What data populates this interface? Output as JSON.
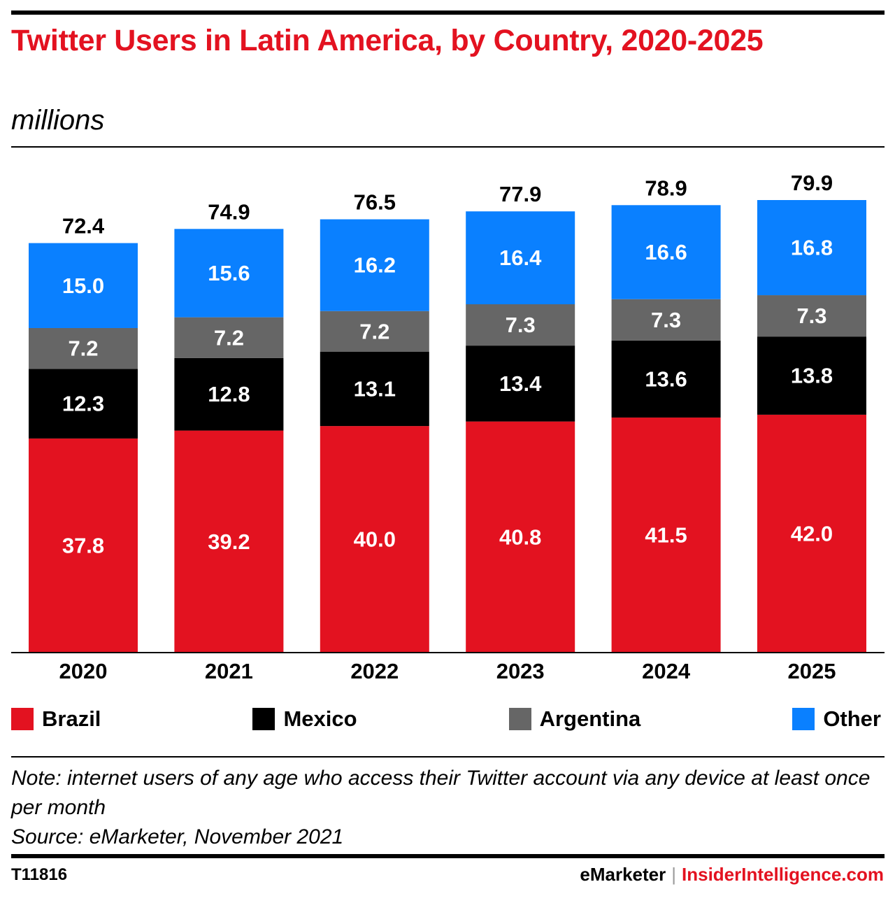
{
  "header": {
    "title": "Twitter Users in Latin America, by Country, 2020-2025",
    "subtitle": "millions"
  },
  "colors": {
    "title": "#e31220",
    "Brazil": "#e31220",
    "Mexico": "#000000",
    "Argentina": "#666666",
    "Other": "#0a80ff"
  },
  "chart_data": {
    "type": "bar",
    "stacked": true,
    "title": "Twitter Users in Latin America, by Country, 2020-2025",
    "subtitle": "millions",
    "categories": [
      "2020",
      "2021",
      "2022",
      "2023",
      "2024",
      "2025"
    ],
    "series": [
      {
        "name": "Brazil",
        "color": "#e31220",
        "values": [
          37.8,
          39.2,
          40.0,
          40.8,
          41.5,
          42.0
        ]
      },
      {
        "name": "Mexico",
        "color": "#000000",
        "values": [
          12.3,
          12.8,
          13.1,
          13.4,
          13.6,
          13.8
        ]
      },
      {
        "name": "Argentina",
        "color": "#666666",
        "values": [
          7.2,
          7.2,
          7.2,
          7.3,
          7.3,
          7.3
        ]
      },
      {
        "name": "Other",
        "color": "#0a80ff",
        "values": [
          15.0,
          15.6,
          16.2,
          16.4,
          16.6,
          16.8
        ]
      }
    ],
    "totals": [
      72.4,
      74.9,
      76.5,
      77.9,
      78.9,
      79.9
    ],
    "value_labels": [
      [
        "37.8",
        "39.2",
        "40.0",
        "40.8",
        "41.5",
        "42.0"
      ],
      [
        "12.3",
        "12.8",
        "13.1",
        "13.4",
        "13.6",
        "13.8"
      ],
      [
        "7.2",
        "7.2",
        "7.2",
        "7.3",
        "7.3",
        "7.3"
      ],
      [
        "15.0",
        "15.6",
        "16.2",
        "16.4",
        "16.6",
        "16.8"
      ]
    ],
    "total_labels": [
      "72.4",
      "74.9",
      "76.5",
      "77.9",
      "78.9",
      "79.9"
    ],
    "ylim": [
      0,
      79.9
    ],
    "grid": false,
    "legend_position": "bottom",
    "xlabel": "",
    "ylabel": ""
  },
  "legend": [
    {
      "label": "Brazil",
      "color": "#e31220"
    },
    {
      "label": "Mexico",
      "color": "#000000"
    },
    {
      "label": "Argentina",
      "color": "#666666"
    },
    {
      "label": "Other",
      "color": "#0a80ff"
    }
  ],
  "notes": {
    "note": "Note: internet users of any age who access their Twitter account via any device at least once per month",
    "source": "Source: eMarketer, November 2021"
  },
  "footer": {
    "chart_id": "T11816",
    "brand_emarketer": "eMarketer",
    "separator": "|",
    "brand_insider": "InsiderIntelligence.com"
  }
}
